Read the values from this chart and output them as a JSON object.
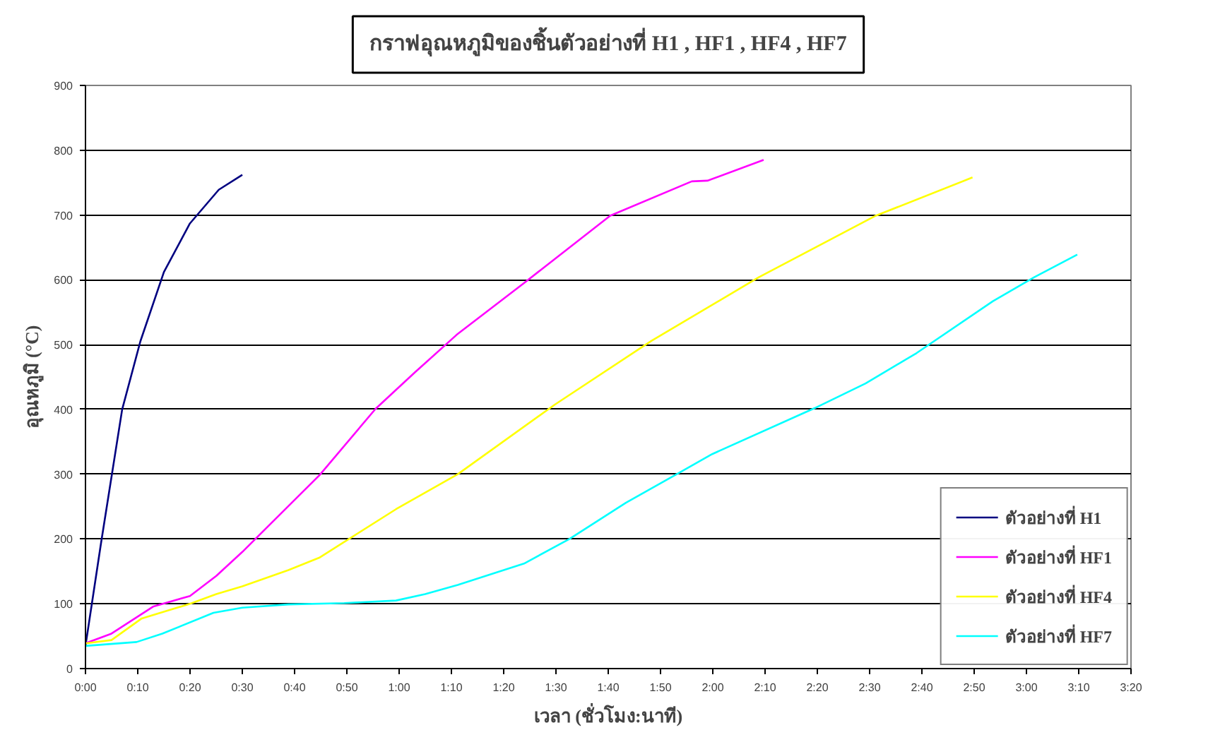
{
  "chart_data": {
    "type": "line",
    "title": "กราฟอุณหภูมิของชิ้นตัวอย่างที่ H1 , HF1 , HF4 , HF7",
    "xlabel": "เวลา (ชั่วโมง:นาที)",
    "ylabel": "อุณหภูมิ (°C)",
    "xlim": [
      0,
      3.3333
    ],
    "xticks": [
      {
        "value": 0,
        "label": "0:00"
      },
      {
        "value": 0.1667,
        "label": "0:10"
      },
      {
        "value": 0.3333,
        "label": "0:20"
      },
      {
        "value": 0.5,
        "label": "0:30"
      },
      {
        "value": 0.6667,
        "label": "0:40"
      },
      {
        "value": 0.8333,
        "label": "0:50"
      },
      {
        "value": 1,
        "label": "1:00"
      },
      {
        "value": 1.1667,
        "label": "1:10"
      },
      {
        "value": 1.3333,
        "label": "1:20"
      },
      {
        "value": 1.5,
        "label": "1:30"
      },
      {
        "value": 1.6667,
        "label": "1:40"
      },
      {
        "value": 1.8333,
        "label": "1:50"
      },
      {
        "value": 2,
        "label": "2:00"
      },
      {
        "value": 2.1667,
        "label": "2:10"
      },
      {
        "value": 2.3333,
        "label": "2:20"
      },
      {
        "value": 2.5,
        "label": "2:30"
      },
      {
        "value": 2.6667,
        "label": "2:40"
      },
      {
        "value": 2.8333,
        "label": "2:50"
      },
      {
        "value": 3,
        "label": "3:00"
      },
      {
        "value": 3.1667,
        "label": "3:10"
      },
      {
        "value": 3.3333,
        "label": "3:20"
      }
    ],
    "ylim": [
      0,
      900
    ],
    "yticks": [
      0,
      100,
      200,
      300,
      400,
      500,
      600,
      700,
      800,
      900
    ],
    "grid": "y",
    "legend": "bottom right",
    "marker": "none",
    "line_style": "solid",
    "series": [
      {
        "name": "ตัวอย่างที่ H1",
        "color": "#000080",
        "x": [
          0,
          0.05,
          0.117,
          0.175,
          0.25,
          0.333,
          0.425,
          0.5
        ],
        "values": [
          35,
          195,
          400,
          505,
          612,
          687,
          739,
          762
        ]
      },
      {
        "name": "ตัวอย่างที่ HF1",
        "color": "#ff00ff",
        "x": [
          0,
          0.083,
          0.217,
          0.333,
          0.417,
          0.5,
          0.747,
          0.925,
          1.05,
          1.183,
          1.398,
          1.673,
          1.933,
          1.983,
          2.162
        ],
        "values": [
          39,
          54,
          96,
          112,
          143,
          180,
          299,
          401,
          457,
          515,
          595,
          699,
          752,
          753,
          785
        ]
      },
      {
        "name": "ตัวอย่างที่ HF4",
        "color": "#ffff00",
        "x": [
          0,
          0.083,
          0.178,
          0.333,
          0.417,
          0.5,
          0.647,
          0.745,
          0.99,
          1.187,
          1.495,
          1.805,
          2.147,
          2.52,
          2.828
        ],
        "values": [
          39,
          44,
          77,
          100,
          115,
          127,
          152,
          171,
          246,
          300,
          407,
          506,
          604,
          699,
          758
        ]
      },
      {
        "name": "ตัวอย่างที่ HF7",
        "color": "#00ffff",
        "x": [
          0,
          0.163,
          0.245,
          0.408,
          0.5,
          0.647,
          0.825,
          0.99,
          1.083,
          1.187,
          1.398,
          1.543,
          1.723,
          1.885,
          1.998,
          2.325,
          2.487,
          2.65,
          2.893,
          3.025,
          3.162
        ],
        "values": [
          35,
          41,
          54,
          86,
          94,
          99,
          101,
          105,
          115,
          129,
          162,
          200,
          256,
          300,
          331,
          402,
          440,
          487,
          567,
          604,
          639
        ]
      }
    ]
  }
}
